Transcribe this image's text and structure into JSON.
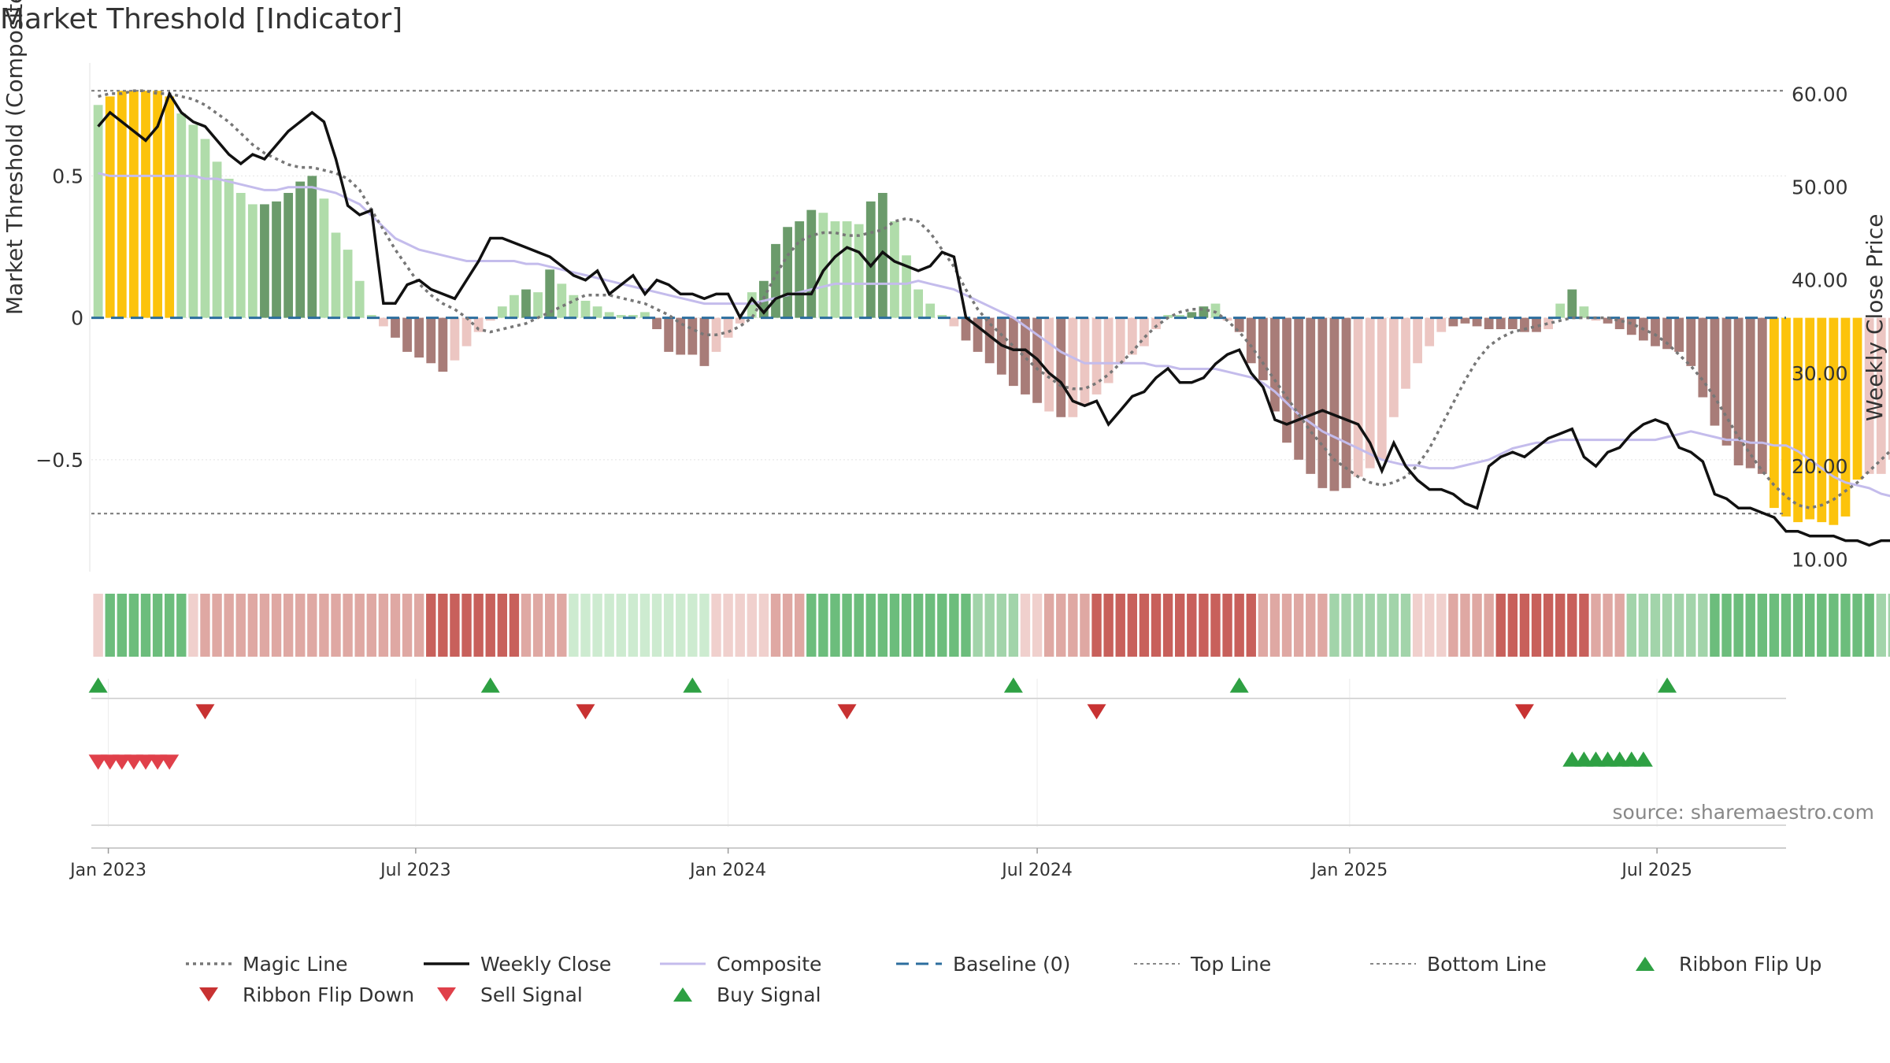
{
  "chart_data": {
    "type": "bar",
    "title": "Market Threshold [Indicator]",
    "ylabel": "Market Threshold (Composite)",
    "y2label": "Weekly Close Price",
    "source": "source: sharemaestro.com",
    "ylim": [
      -0.9,
      0.92
    ],
    "y2lim": [
      8.5,
      64
    ],
    "yticks": [
      -0.5,
      0,
      0.5
    ],
    "ytick_labels": [
      "−0.5",
      "0",
      "0.5"
    ],
    "y2ticks": [
      10,
      20,
      30,
      40,
      50,
      60
    ],
    "y2tick_labels": [
      "10.00",
      "20.00",
      "30.00",
      "40.00",
      "50.00",
      "60.00"
    ],
    "top_line": 0.8,
    "bottom_line": -0.69,
    "start_date": "2022-12-26",
    "xticks": [
      {
        "date": "2023-01-01",
        "label": "Jan 2023"
      },
      {
        "date": "2023-07-01",
        "label": "Jul 2023"
      },
      {
        "date": "2024-01-01",
        "label": "Jan 2024"
      },
      {
        "date": "2024-07-01",
        "label": "Jul 2024"
      },
      {
        "date": "2025-01-01",
        "label": "Jan 2025"
      },
      {
        "date": "2025-07-01",
        "label": "Jul 2025"
      }
    ],
    "x_range": [
      "2022-12-22",
      "2025-09-15"
    ],
    "grid": true,
    "legend_placement": "bottom",
    "colors": {
      "strong_up": "#6b9b6b",
      "weak_up": "#b0dcaa",
      "strong_down": "#a87c78",
      "weak_down": "#ecc6c2",
      "extreme": "#fcc30c",
      "close": "#111111",
      "composite": "#c4bcec",
      "magic": "#777777",
      "baseline": "#2c6e9e",
      "buy": "#2ea043",
      "sell": "#e0404a",
      "flip_up": "#2ea043",
      "flip_down": "#c83232"
    },
    "bars": [
      0.75,
      0.78,
      0.8,
      0.8,
      0.8,
      0.8,
      0.78,
      0.72,
      0.68,
      0.63,
      0.55,
      0.49,
      0.44,
      0.4,
      0.4,
      0.41,
      0.44,
      0.48,
      0.5,
      0.42,
      0.3,
      0.24,
      0.13,
      0.01,
      -0.03,
      -0.07,
      -0.12,
      -0.14,
      -0.16,
      -0.19,
      -0.15,
      -0.1,
      -0.05,
      -0.01,
      0.04,
      0.08,
      0.1,
      0.09,
      0.17,
      0.12,
      0.08,
      0.06,
      0.04,
      0.02,
      0.01,
      0.01,
      0.02,
      -0.04,
      -0.12,
      -0.13,
      -0.13,
      -0.17,
      -0.12,
      -0.07,
      -0.02,
      0.09,
      0.13,
      0.26,
      0.32,
      0.34,
      0.38,
      0.37,
      0.34,
      0.34,
      0.33,
      0.41,
      0.44,
      0.34,
      0.22,
      0.1,
      0.05,
      0.01,
      -0.03,
      -0.08,
      -0.12,
      -0.16,
      -0.2,
      -0.24,
      -0.27,
      -0.3,
      -0.33,
      -0.35,
      -0.35,
      -0.31,
      -0.27,
      -0.23,
      -0.16,
      -0.13,
      -0.1,
      -0.04,
      0.01,
      0.01,
      0.02,
      0.04,
      0.05,
      -0.01,
      -0.05,
      -0.16,
      -0.22,
      -0.33,
      -0.44,
      -0.5,
      -0.55,
      -0.6,
      -0.61,
      -0.6,
      -0.56,
      -0.53,
      -0.5,
      -0.35,
      -0.25,
      -0.16,
      -0.1,
      -0.05,
      -0.03,
      -0.02,
      -0.03,
      -0.04,
      -0.04,
      -0.04,
      -0.05,
      -0.05,
      -0.04,
      0.05,
      0.1,
      0.04,
      -0.01,
      -0.02,
      -0.04,
      -0.06,
      -0.08,
      -0.1,
      -0.11,
      -0.12,
      -0.17,
      -0.28,
      -0.38,
      -0.45,
      -0.52,
      -0.53,
      -0.55,
      -0.67,
      -0.7,
      -0.72,
      -0.71,
      -0.72,
      -0.73,
      -0.7,
      -0.57,
      -0.55,
      -0.55,
      -0.5,
      -0.44,
      -0.37,
      -0.31,
      -0.27,
      -0.2,
      -0.17,
      -0.16,
      -0.16,
      -0.17,
      -0.2,
      -0.2,
      -0.2
    ],
    "bar_classes": [
      "weak_up",
      "extreme",
      "extreme",
      "extreme",
      "extreme",
      "extreme",
      "extreme",
      "weak_up",
      "weak_up",
      "weak_up",
      "weak_up",
      "weak_up",
      "weak_up",
      "weak_up",
      "strong_up",
      "strong_up",
      "strong_up",
      "strong_up",
      "strong_up",
      "weak_up",
      "weak_up",
      "weak_up",
      "weak_up",
      "weak_up",
      "weak_down",
      "strong_down",
      "strong_down",
      "strong_down",
      "strong_down",
      "strong_down",
      "weak_down",
      "weak_down",
      "weak_down",
      "weak_down",
      "weak_up",
      "weak_up",
      "strong_up",
      "weak_up",
      "strong_up",
      "weak_up",
      "weak_up",
      "weak_up",
      "weak_up",
      "weak_up",
      "weak_up",
      "weak_up",
      "weak_up",
      "strong_down",
      "strong_down",
      "strong_down",
      "strong_down",
      "strong_down",
      "weak_down",
      "weak_down",
      "weak_down",
      "weak_up",
      "strong_up",
      "strong_up",
      "strong_up",
      "strong_up",
      "strong_up",
      "weak_up",
      "weak_up",
      "weak_up",
      "weak_up",
      "strong_up",
      "strong_up",
      "weak_up",
      "weak_up",
      "weak_up",
      "weak_up",
      "weak_up",
      "weak_down",
      "strong_down",
      "strong_down",
      "strong_down",
      "strong_down",
      "strong_down",
      "strong_down",
      "strong_down",
      "weak_down",
      "strong_down",
      "weak_down",
      "weak_down",
      "weak_down",
      "weak_down",
      "weak_down",
      "weak_down",
      "weak_down",
      "weak_down",
      "weak_up",
      "weak_up",
      "strong_up",
      "strong_up",
      "weak_up",
      "weak_down",
      "strong_down",
      "strong_down",
      "strong_down",
      "strong_down",
      "strong_down",
      "strong_down",
      "strong_down",
      "strong_down",
      "strong_down",
      "strong_down",
      "weak_down",
      "weak_down",
      "weak_down",
      "weak_down",
      "weak_down",
      "weak_down",
      "weak_down",
      "weak_down",
      "strong_down",
      "strong_down",
      "strong_down",
      "strong_down",
      "strong_down",
      "strong_down",
      "strong_down",
      "strong_down",
      "weak_down",
      "weak_up",
      "strong_up",
      "weak_up",
      "weak_down",
      "strong_down",
      "strong_down",
      "strong_down",
      "strong_down",
      "strong_down",
      "strong_down",
      "strong_down",
      "strong_down",
      "strong_down",
      "strong_down",
      "strong_down",
      "strong_down",
      "strong_down",
      "strong_down",
      "extreme",
      "extreme",
      "extreme",
      "extreme",
      "extreme",
      "extreme",
      "extreme",
      "extreme",
      "weak_down",
      "weak_down",
      "weak_down",
      "weak_down",
      "weak_down",
      "weak_down",
      "weak_down",
      "weak_down",
      "weak_down",
      "strong_down",
      "strong_down",
      "weak_down",
      "weak_down",
      "weak_down",
      "weak_down",
      "weak_down",
      "strong_down"
    ],
    "close_series": [
      56.5,
      58.0,
      57.0,
      56.0,
      55.0,
      56.5,
      60.0,
      58.0,
      57.0,
      56.5,
      55.0,
      53.5,
      52.5,
      53.5,
      53.0,
      54.5,
      56.0,
      57.0,
      58.0,
      57.0,
      53.0,
      48.0,
      47.0,
      47.5,
      37.5,
      37.5,
      39.5,
      40.0,
      39.0,
      38.5,
      38.0,
      40.0,
      42.0,
      44.5,
      44.5,
      44.0,
      43.5,
      43.0,
      42.5,
      41.5,
      40.5,
      40.0,
      41.0,
      38.5,
      39.5,
      40.5,
      38.5,
      40.0,
      39.5,
      38.5,
      38.5,
      38.0,
      38.5,
      38.5,
      36.0,
      38.0,
      36.5,
      38.0,
      38.5,
      38.5,
      38.5,
      41.0,
      42.5,
      43.5,
      43.0,
      41.5,
      43.0,
      42.0,
      41.5,
      41.0,
      41.5,
      43.0,
      42.5,
      36.0,
      35.0,
      34.0,
      33.0,
      32.5,
      32.5,
      31.5,
      30.0,
      29.0,
      27.0,
      26.5,
      27.0,
      24.5,
      26.0,
      27.5,
      28.0,
      29.5,
      30.5,
      29.0,
      29.0,
      29.5,
      31.0,
      32.0,
      32.5,
      30.0,
      28.5,
      25.0,
      24.5,
      25.0,
      25.5,
      26.0,
      25.5,
      25.0,
      24.5,
      22.5,
      19.5,
      22.5,
      20.0,
      18.5,
      17.5,
      17.5,
      17.0,
      16.0,
      15.5,
      20.0,
      21.0,
      21.5,
      21.0,
      22.0,
      23.0,
      23.5,
      24.0,
      21.0,
      20.0,
      21.5,
      22.0,
      23.5,
      24.5,
      25.0,
      24.5,
      22.0,
      21.5,
      20.5,
      17.0,
      16.5,
      15.5,
      15.5,
      15.0,
      14.5,
      13.0,
      13.0,
      12.5,
      12.5,
      12.5,
      12.0,
      12.0,
      11.5,
      12.0,
      12.0,
      13.0,
      12.5,
      11.5,
      11.5,
      12.0,
      11.5,
      12.0,
      12.0,
      13.0,
      14.0,
      14.5,
      15.5,
      15.0,
      14.0
    ],
    "composite_series": [
      0.51,
      0.5,
      0.5,
      0.5,
      0.5,
      0.5,
      0.5,
      0.5,
      0.5,
      0.49,
      0.49,
      0.48,
      0.47,
      0.46,
      0.45,
      0.45,
      0.46,
      0.46,
      0.46,
      0.45,
      0.44,
      0.42,
      0.4,
      0.36,
      0.32,
      0.28,
      0.26,
      0.24,
      0.23,
      0.22,
      0.21,
      0.2,
      0.2,
      0.2,
      0.2,
      0.2,
      0.19,
      0.19,
      0.18,
      0.17,
      0.16,
      0.15,
      0.14,
      0.13,
      0.12,
      0.11,
      0.1,
      0.09,
      0.08,
      0.07,
      0.06,
      0.05,
      0.05,
      0.05,
      0.05,
      0.05,
      0.06,
      0.07,
      0.08,
      0.09,
      0.1,
      0.11,
      0.12,
      0.12,
      0.12,
      0.12,
      0.12,
      0.12,
      0.12,
      0.13,
      0.12,
      0.11,
      0.1,
      0.08,
      0.06,
      0.04,
      0.02,
      0.0,
      -0.03,
      -0.06,
      -0.09,
      -0.12,
      -0.14,
      -0.16,
      -0.16,
      -0.16,
      -0.16,
      -0.16,
      -0.16,
      -0.17,
      -0.17,
      -0.18,
      -0.18,
      -0.18,
      -0.18,
      -0.19,
      -0.2,
      -0.21,
      -0.23,
      -0.26,
      -0.3,
      -0.34,
      -0.37,
      -0.4,
      -0.42,
      -0.44,
      -0.46,
      -0.48,
      -0.5,
      -0.51,
      -0.52,
      -0.52,
      -0.53,
      -0.53,
      -0.53,
      -0.52,
      -0.51,
      -0.5,
      -0.48,
      -0.46,
      -0.45,
      -0.44,
      -0.44,
      -0.43,
      -0.43,
      -0.43,
      -0.43,
      -0.43,
      -0.43,
      -0.43,
      -0.43,
      -0.43,
      -0.42,
      -0.41,
      -0.4,
      -0.41,
      -0.42,
      -0.43,
      -0.43,
      -0.44,
      -0.44,
      -0.45,
      -0.45,
      -0.47,
      -0.5,
      -0.53,
      -0.56,
      -0.58,
      -0.59,
      -0.6,
      -0.62,
      -0.63,
      -0.64,
      -0.65,
      -0.66,
      -0.66,
      -0.66,
      -0.66,
      -0.67,
      -0.68,
      -0.68,
      -0.69,
      -0.69,
      -0.69,
      -0.69,
      -0.7,
      -0.7,
      -0.7,
      -0.7,
      -0.69,
      -0.69,
      -0.69,
      -0.69,
      -0.7
    ],
    "magic_series": [
      0.78,
      0.79,
      0.79,
      0.8,
      0.8,
      0.79,
      0.79,
      0.78,
      0.77,
      0.75,
      0.72,
      0.69,
      0.65,
      0.61,
      0.58,
      0.56,
      0.54,
      0.53,
      0.53,
      0.52,
      0.51,
      0.49,
      0.45,
      0.38,
      0.31,
      0.24,
      0.18,
      0.12,
      0.08,
      0.05,
      0.03,
      0.0,
      -0.04,
      -0.05,
      -0.04,
      -0.03,
      -0.02,
      0.0,
      0.02,
      0.04,
      0.06,
      0.08,
      0.08,
      0.08,
      0.07,
      0.06,
      0.05,
      0.03,
      0.01,
      -0.02,
      -0.04,
      -0.06,
      -0.06,
      -0.05,
      -0.03,
      0.0,
      0.07,
      0.15,
      0.22,
      0.27,
      0.29,
      0.3,
      0.3,
      0.29,
      0.29,
      0.3,
      0.31,
      0.34,
      0.35,
      0.34,
      0.3,
      0.24,
      0.18,
      0.1,
      0.03,
      -0.02,
      -0.06,
      -0.1,
      -0.14,
      -0.18,
      -0.21,
      -0.24,
      -0.25,
      -0.25,
      -0.23,
      -0.2,
      -0.16,
      -0.12,
      -0.07,
      -0.03,
      0.0,
      0.02,
      0.03,
      0.03,
      0.02,
      -0.01,
      -0.05,
      -0.1,
      -0.16,
      -0.22,
      -0.28,
      -0.34,
      -0.4,
      -0.45,
      -0.5,
      -0.53,
      -0.56,
      -0.58,
      -0.59,
      -0.58,
      -0.56,
      -0.52,
      -0.46,
      -0.38,
      -0.3,
      -0.22,
      -0.15,
      -0.1,
      -0.07,
      -0.05,
      -0.04,
      -0.03,
      -0.02,
      -0.01,
      0.0,
      0.0,
      0.0,
      0.0,
      -0.01,
      -0.02,
      -0.04,
      -0.06,
      -0.09,
      -0.13,
      -0.17,
      -0.22,
      -0.28,
      -0.35,
      -0.42,
      -0.48,
      -0.54,
      -0.59,
      -0.63,
      -0.66,
      -0.67,
      -0.66,
      -0.64,
      -0.61,
      -0.58,
      -0.54,
      -0.5,
      -0.46,
      -0.42,
      -0.38,
      -0.34,
      -0.3,
      -0.27,
      -0.25,
      -0.25,
      -0.25,
      -0.25,
      -0.25,
      -0.25,
      -0.25,
      -0.25
    ],
    "ribbon_levels": [
      -1,
      3,
      3,
      3,
      3,
      3,
      3,
      3,
      -1,
      -2,
      -2,
      -2,
      -2,
      -2,
      -2,
      -2,
      -2,
      -2,
      -2,
      -2,
      -2,
      -2,
      -2,
      -2,
      -2,
      -2,
      -2,
      -2,
      -3,
      -3,
      -3,
      -3,
      -3,
      -3,
      -3,
      -3,
      -2,
      -2,
      -2,
      -2,
      1,
      1,
      1,
      1,
      1,
      1,
      1,
      1,
      1,
      1,
      1,
      1,
      -1,
      -1,
      -1,
      -1,
      -1,
      -2,
      -2,
      -2,
      3,
      3,
      3,
      3,
      3,
      3,
      3,
      3,
      3,
      3,
      3,
      3,
      3,
      3,
      2,
      2,
      2,
      2,
      -1,
      -1,
      -2,
      -2,
      -2,
      -2,
      -3,
      -3,
      -3,
      -3,
      -3,
      -3,
      -3,
      -3,
      -3,
      -3,
      -3,
      -3,
      -3,
      -3,
      -2,
      -2,
      -2,
      -2,
      -2,
      -2,
      2,
      2,
      2,
      2,
      2,
      2,
      2,
      -1,
      -1,
      -1,
      -2,
      -2,
      -2,
      -2,
      -3,
      -3,
      -3,
      -3,
      -3,
      -3,
      -3,
      -3,
      -2,
      -2,
      -2,
      2,
      2,
      2,
      2,
      2,
      2,
      2,
      3,
      3,
      3,
      3,
      3,
      3,
      3,
      3,
      3,
      3,
      3,
      3,
      3,
      3,
      2,
      2,
      2,
      2,
      -1,
      -1,
      -1,
      -1,
      -1,
      -1,
      -2,
      -2,
      -2,
      -2,
      -2,
      -2,
      -3,
      -3,
      -3,
      -3,
      -3,
      -3,
      -3,
      -3,
      -2,
      -2,
      -2,
      1,
      1,
      1,
      2,
      2,
      2,
      2,
      3,
      3,
      3,
      3
    ],
    "flip_up_dates": [
      "2022-12-26",
      "2023-08-14",
      "2023-12-11",
      "2024-06-17",
      "2024-10-28",
      "2025-07-07"
    ],
    "flip_down_dates": [
      "2023-02-27",
      "2023-10-09",
      "2024-03-11",
      "2024-08-05",
      "2025-04-14"
    ],
    "sell_signal_dates": [
      "2022-12-26",
      "2023-01-02",
      "2023-01-09",
      "2023-01-16",
      "2023-01-23",
      "2023-01-30",
      "2023-02-06"
    ],
    "buy_signal_dates": [
      "2025-05-12",
      "2025-05-19",
      "2025-05-26",
      "2025-06-02",
      "2025-06-09",
      "2025-06-16",
      "2025-06-23"
    ],
    "legend": [
      {
        "key": "magic",
        "label": "Magic Line"
      },
      {
        "key": "close",
        "label": "Weekly Close"
      },
      {
        "key": "composite",
        "label": "Composite"
      },
      {
        "key": "baseline",
        "label": "Baseline (0)"
      },
      {
        "key": "top",
        "label": "Top Line"
      },
      {
        "key": "bottom",
        "label": "Bottom Line"
      },
      {
        "key": "flip_up",
        "label": "Ribbon Flip Up"
      },
      {
        "key": "flip_down",
        "label": "Ribbon Flip Down"
      },
      {
        "key": "sell",
        "label": "Sell Signal"
      },
      {
        "key": "buy",
        "label": "Buy Signal"
      }
    ]
  }
}
